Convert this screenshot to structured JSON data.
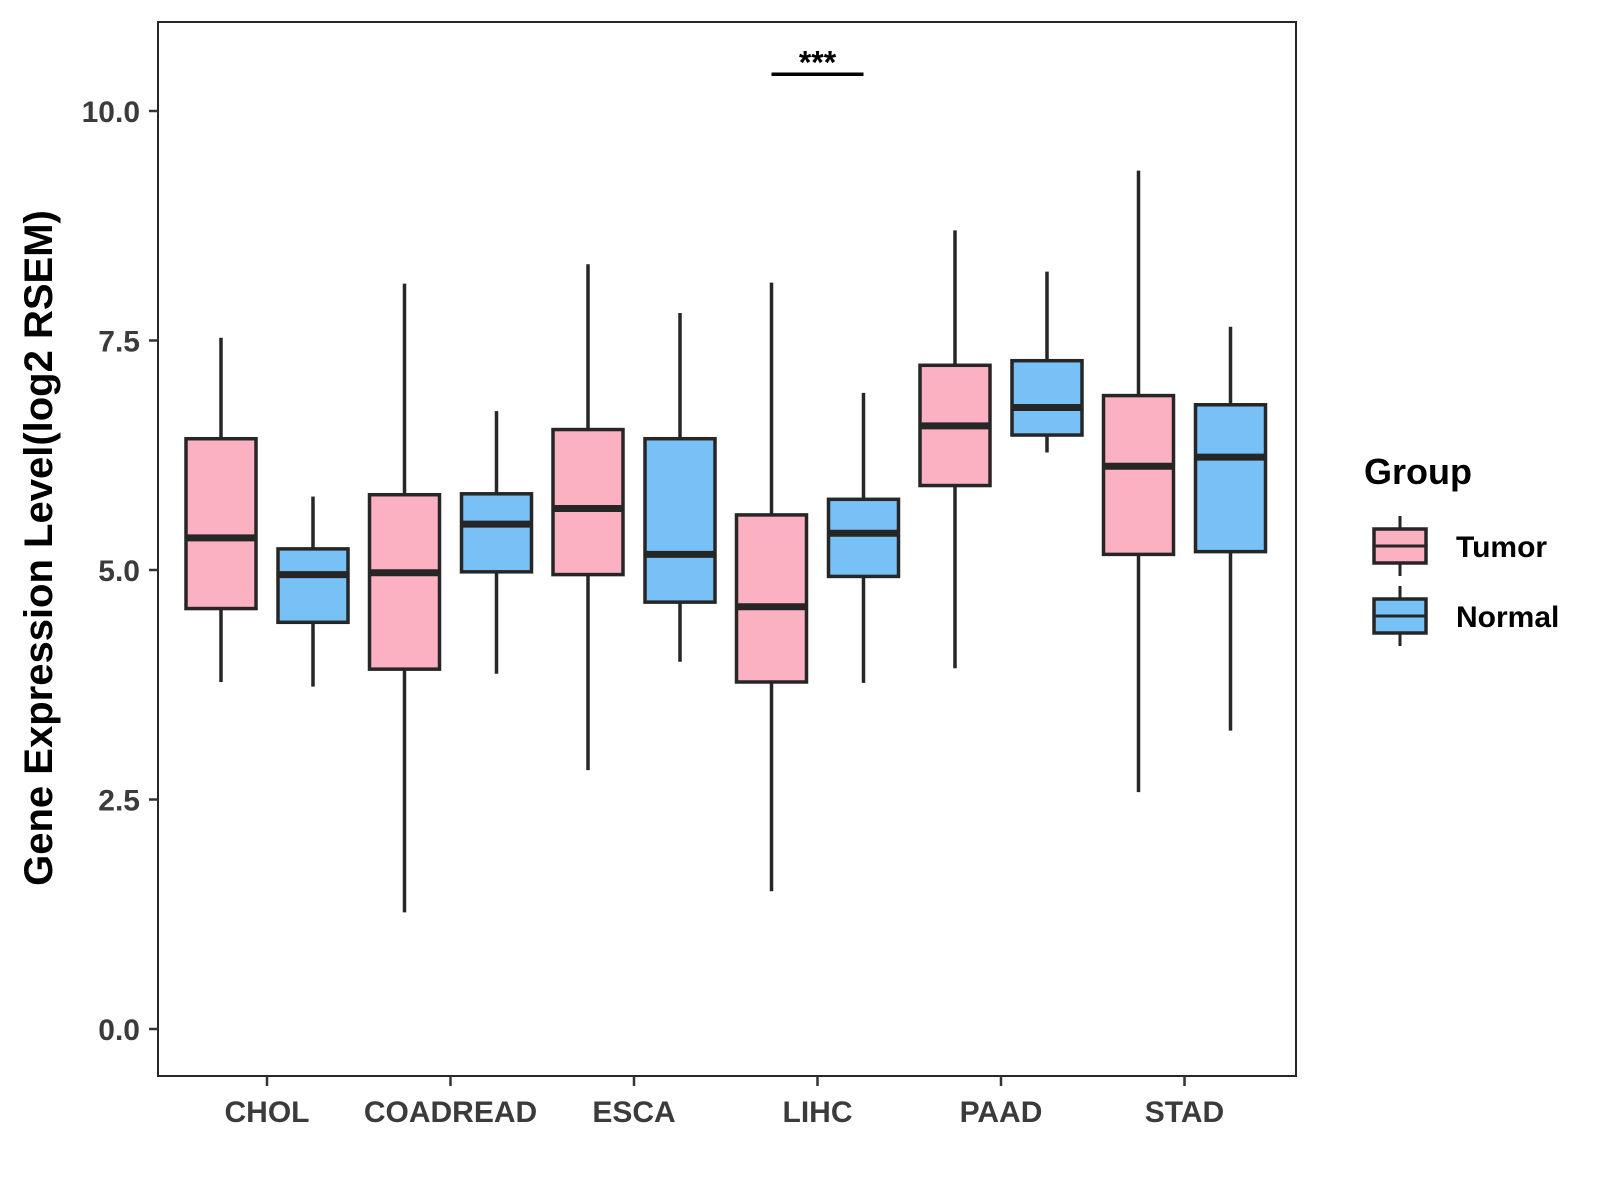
{
  "chart_data": {
    "type": "boxplot",
    "title": "",
    "xlabel": "",
    "ylabel": "Gene Expression Level(log2 RSEM)",
    "ylim": [
      -0.5,
      11.0
    ],
    "yticks": [
      "0.0",
      "2.5",
      "5.0",
      "7.5",
      "10.0"
    ],
    "ytick_values": [
      0.0,
      2.5,
      5.0,
      7.5,
      10.0
    ],
    "categories": [
      "CHOL",
      "COADREAD",
      "ESCA",
      "LIHC",
      "PAAD",
      "STAD"
    ],
    "legend": {
      "title": "Group",
      "placement": "right",
      "entries": [
        "Tumor",
        "Normal"
      ]
    },
    "colors": {
      "Tumor": "#FBB1C1",
      "Normal": "#78C1F7",
      "outline": "#262626"
    },
    "series": [
      {
        "name": "Tumor",
        "boxes": [
          {
            "min": 3.78,
            "q1": 4.58,
            "median": 5.35,
            "q3": 6.43,
            "max": 7.53
          },
          {
            "min": 1.27,
            "q1": 3.92,
            "median": 4.97,
            "q3": 5.82,
            "max": 8.12
          },
          {
            "min": 2.82,
            "q1": 4.95,
            "median": 5.67,
            "q3": 6.53,
            "max": 8.33
          },
          {
            "min": 1.5,
            "q1": 3.78,
            "median": 4.6,
            "q3": 5.6,
            "max": 8.13
          },
          {
            "min": 3.93,
            "q1": 5.92,
            "median": 6.57,
            "q3": 7.23,
            "max": 8.7
          },
          {
            "min": 2.58,
            "q1": 5.17,
            "median": 6.13,
            "q3": 6.9,
            "max": 9.35
          }
        ]
      },
      {
        "name": "Normal",
        "boxes": [
          {
            "min": 3.73,
            "q1": 4.43,
            "median": 4.95,
            "q3": 5.23,
            "max": 5.8
          },
          {
            "min": 3.87,
            "q1": 4.98,
            "median": 5.5,
            "q3": 5.83,
            "max": 6.73
          },
          {
            "min": 4.0,
            "q1": 4.65,
            "median": 5.17,
            "q3": 6.43,
            "max": 7.8
          },
          {
            "min": 3.77,
            "q1": 4.93,
            "median": 5.4,
            "q3": 5.77,
            "max": 6.93
          },
          {
            "min": 6.28,
            "q1": 6.47,
            "median": 6.77,
            "q3": 7.28,
            "max": 8.25
          },
          {
            "min": 3.25,
            "q1": 5.2,
            "median": 6.23,
            "q3": 6.8,
            "max": 7.65
          }
        ]
      }
    ],
    "annotations": [
      {
        "category": "LIHC",
        "text": "***",
        "y": 10.4
      }
    ]
  }
}
